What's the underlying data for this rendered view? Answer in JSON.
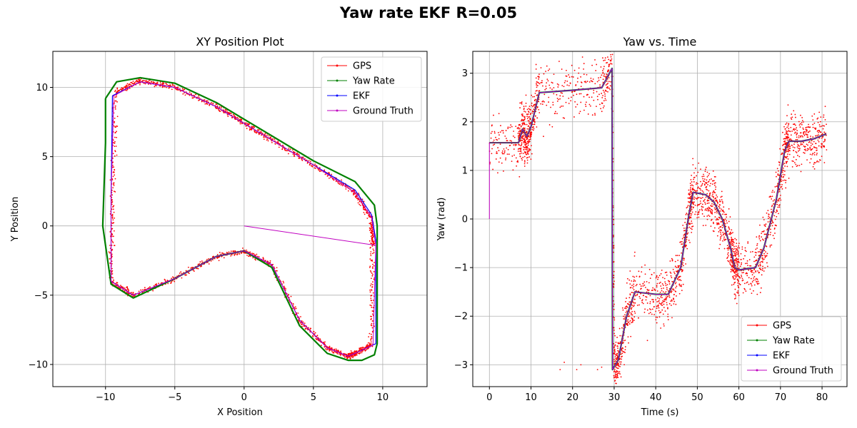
{
  "figure": {
    "title": "Yaw rate EKF R=0.05"
  },
  "chart_data": [
    {
      "type": "line",
      "title": "XY Position Plot",
      "xlabel": "X Position",
      "ylabel": "Y Position",
      "xlim": [
        -13.8,
        13.2
      ],
      "ylim": [
        -11.6,
        12.6
      ],
      "xticks": [
        -10,
        -5,
        0,
        5,
        10
      ],
      "xtick_labels": [
        "−10",
        "−5",
        "0",
        "5",
        "10"
      ],
      "yticks": [
        -10,
        -5,
        0,
        5,
        10
      ],
      "ytick_labels": [
        "−10",
        "−5",
        "0",
        "5",
        "10"
      ],
      "grid": true,
      "legend_position": "top-right",
      "series": [
        {
          "name": "GPS",
          "color": "#ff0000",
          "style": "noisy-dots",
          "x": [
            -9.3,
            -7.5,
            -5,
            -2,
            0,
            2,
            5,
            8,
            9.2,
            9.3,
            9.2,
            8,
            7.5,
            6,
            4,
            2,
            0,
            -2,
            -5,
            -8,
            -9.6,
            -9.5,
            -9.3
          ],
          "y": [
            9.6,
            10.5,
            10,
            8.6,
            7.4,
            6.2,
            4.4,
            2.4,
            0.5,
            -1.5,
            -8.6,
            -9.2,
            -9.4,
            -8.8,
            -6.8,
            -2.8,
            -1.8,
            -2.2,
            -3.8,
            -5,
            -4,
            2,
            9.6
          ]
        },
        {
          "name": "Yaw Rate",
          "color": "#008000",
          "style": "line",
          "x": [
            -10,
            -9.2,
            -7.5,
            -5,
            -2,
            0,
            2,
            5,
            8,
            9.4,
            9.6,
            9.6,
            9.4,
            8.5,
            7.5,
            6,
            4,
            2,
            0,
            -2,
            -5,
            -8,
            -9.6,
            -10.2,
            -10,
            -10
          ],
          "y": [
            9.2,
            10.4,
            10.7,
            10.3,
            8.9,
            7.7,
            6.5,
            4.7,
            3.2,
            1.5,
            0,
            -8.5,
            -9.3,
            -9.7,
            -9.7,
            -9.2,
            -7.2,
            -3,
            -1.8,
            -2.2,
            -3.8,
            -5.2,
            -4.2,
            0,
            6,
            9.2
          ]
        },
        {
          "name": "EKF",
          "color": "#0000ff",
          "style": "line",
          "x": [
            -9.5,
            -7.5,
            -5,
            -2,
            0,
            2,
            5,
            8,
            9.2,
            9.5,
            9.5,
            8,
            7.5,
            6,
            4,
            2,
            0,
            -2,
            -5,
            -8,
            -9.6,
            -9.6,
            -9.5
          ],
          "y": [
            9.4,
            10.4,
            10,
            8.6,
            7.4,
            6.2,
            4.4,
            2.6,
            0.8,
            -1,
            -8.5,
            -9.2,
            -9.4,
            -8.8,
            -6.8,
            -2.8,
            -1.8,
            -2.2,
            -3.8,
            -5,
            -4,
            2,
            9.4
          ]
        },
        {
          "name": "Ground Truth",
          "color": "#c000c0",
          "style": "line",
          "x": [
            0,
            9.5,
            9.3,
            8,
            7.5,
            6,
            4,
            2,
            0,
            -2,
            -5,
            -8,
            -9.6,
            -9.6,
            -9.4,
            -7.5,
            -5,
            -2,
            0,
            2,
            5,
            8,
            9.2,
            9.5
          ],
          "y": [
            0,
            -1.4,
            -8.6,
            -9.2,
            -9.4,
            -8.8,
            -6.8,
            -2.8,
            -1.8,
            -2.2,
            -3.8,
            -5,
            -4,
            2,
            9.4,
            10.4,
            10,
            8.6,
            7.4,
            6.2,
            4.4,
            2.4,
            0.6,
            -1.4
          ]
        }
      ]
    },
    {
      "type": "line",
      "title": "Yaw vs. Time",
      "xlabel": "Time (s)",
      "ylabel": "Yaw (rad)",
      "xlim": [
        -4,
        86
      ],
      "ylim": [
        -3.45,
        3.45
      ],
      "xticks": [
        0,
        10,
        20,
        30,
        40,
        50,
        60,
        70,
        80
      ],
      "xtick_labels": [
        "0",
        "10",
        "20",
        "30",
        "40",
        "50",
        "60",
        "70",
        "80"
      ],
      "yticks": [
        -3,
        -2,
        -1,
        0,
        1,
        2,
        3
      ],
      "ytick_labels": [
        "−3",
        "−2",
        "−1",
        "0",
        "1",
        "2",
        "3"
      ],
      "grid": true,
      "legend_position": "bottom-right",
      "series": [
        {
          "name": "GPS",
          "color": "#ff0000",
          "style": "noisy-dots",
          "x": [
            0,
            7,
            8,
            9,
            10,
            12,
            20,
            27,
            29.5,
            30,
            31,
            33,
            35,
            40,
            43,
            46,
            48,
            49,
            52,
            54,
            56,
            58,
            59,
            60,
            64,
            66,
            69,
            71,
            72,
            75,
            78,
            81
          ],
          "y": [
            1.57,
            1.57,
            1.85,
            1.7,
            1.9,
            2.6,
            2.65,
            2.7,
            3.1,
            -3.1,
            -2.9,
            -2.0,
            -1.5,
            -1.55,
            -1.55,
            -1.0,
            0.1,
            0.5,
            0.5,
            0.35,
            0.0,
            -0.6,
            -1.0,
            -1.05,
            -1.0,
            -0.6,
            0.4,
            1.4,
            1.6,
            1.6,
            1.65,
            1.75
          ]
        },
        {
          "name": "Yaw Rate",
          "color": "#008000",
          "style": "line",
          "x": [
            0,
            7,
            8,
            9,
            10,
            12,
            20,
            27,
            29.5,
            29.6,
            31,
            33,
            35,
            40,
            43,
            46,
            48,
            49,
            52,
            54,
            56,
            58,
            59,
            60,
            64,
            66,
            69,
            71,
            72,
            75,
            78,
            81
          ],
          "y": [
            1.57,
            1.57,
            1.85,
            1.7,
            1.9,
            2.6,
            2.65,
            2.7,
            3.1,
            -3.1,
            -2.9,
            -2.0,
            -1.5,
            -1.55,
            -1.55,
            -1.0,
            0.1,
            0.55,
            0.5,
            0.35,
            0.0,
            -0.6,
            -1.0,
            -1.05,
            -1.0,
            -0.6,
            0.4,
            1.4,
            1.6,
            1.6,
            1.65,
            1.75
          ]
        },
        {
          "name": "EKF",
          "color": "#0000ff",
          "style": "line",
          "x": [
            0,
            7,
            8,
            9,
            10,
            12,
            20,
            27,
            29.5,
            29.6,
            31,
            33,
            35,
            40,
            43,
            46,
            48,
            49,
            52,
            54,
            56,
            58,
            59,
            60,
            64,
            66,
            69,
            71,
            72,
            75,
            78,
            81
          ],
          "y": [
            1.57,
            1.57,
            1.85,
            1.7,
            1.9,
            2.6,
            2.65,
            2.7,
            3.1,
            -3.1,
            -2.9,
            -2.0,
            -1.5,
            -1.55,
            -1.55,
            -1.0,
            0.1,
            0.55,
            0.5,
            0.35,
            0.0,
            -0.6,
            -1.0,
            -1.05,
            -1.0,
            -0.6,
            0.4,
            1.4,
            1.6,
            1.6,
            1.65,
            1.75
          ]
        },
        {
          "name": "Ground Truth",
          "color": "#c000c0",
          "style": "line",
          "x": [
            0,
            0,
            7,
            8,
            9,
            10,
            12,
            20,
            27,
            29.5,
            29.6,
            31,
            33,
            35,
            40,
            43,
            46,
            48,
            49,
            52,
            54,
            56,
            58,
            59,
            60,
            64,
            66,
            69,
            71,
            72,
            75,
            78,
            81
          ],
          "y": [
            0,
            1.57,
            1.57,
            1.85,
            1.7,
            1.9,
            2.6,
            2.65,
            2.7,
            3.1,
            -3.1,
            -2.9,
            -2.0,
            -1.5,
            -1.55,
            -1.55,
            -1.0,
            0.1,
            0.55,
            0.5,
            0.35,
            0.0,
            -0.6,
            -1.0,
            -1.05,
            -1.0,
            -0.6,
            0.4,
            1.4,
            1.6,
            1.6,
            1.65,
            1.75
          ]
        }
      ],
      "outliers": {
        "name": "GPS",
        "x": [
          2,
          3,
          8.5,
          13,
          17,
          18,
          21,
          22,
          26,
          27,
          38,
          40,
          42
        ],
        "y": [
          0.95,
          1.15,
          1.2,
          1.7,
          -3.1,
          -2.95,
          -3.1,
          -3.0,
          -3.1,
          -3.05,
          -2.5,
          -1.9,
          -2.2
        ]
      }
    }
  ]
}
